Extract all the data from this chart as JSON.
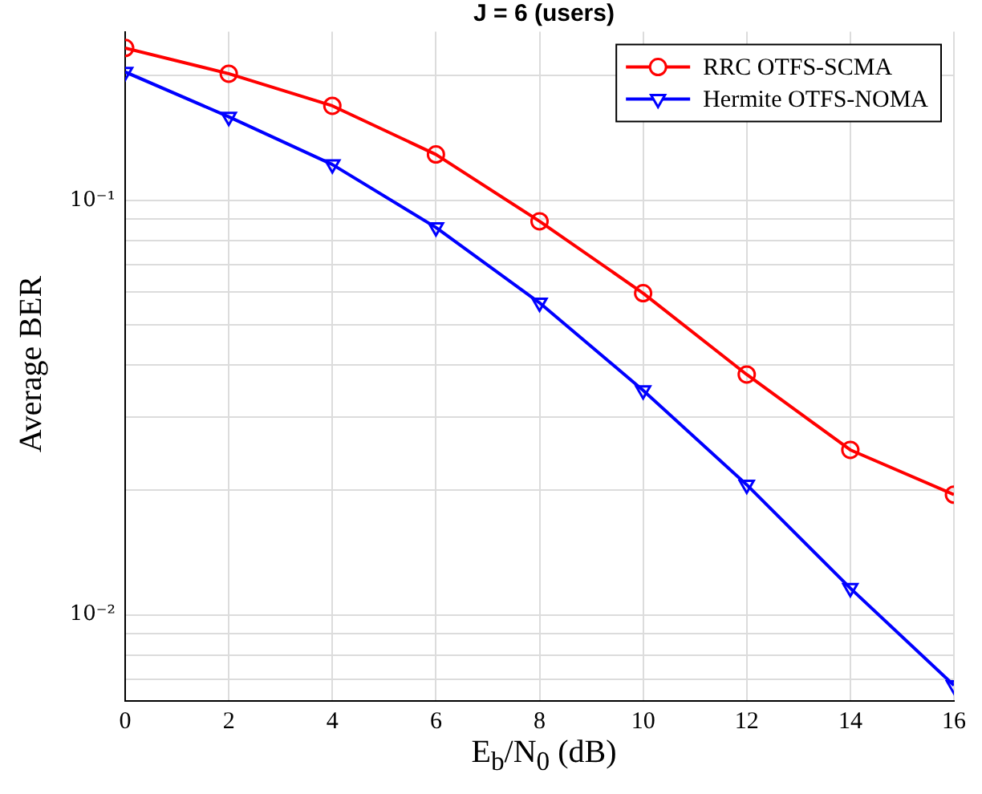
{
  "chart_data": {
    "type": "line",
    "title": "J = 6 (users)",
    "xlabel": "E$_{b}$/N$_{0}$ (dB)",
    "ylabel": "Average BER",
    "x": [
      0,
      2,
      4,
      6,
      8,
      10,
      12,
      14,
      16
    ],
    "series": [
      {
        "name": "RRC OTFS-SCMA",
        "color": "#ff0000",
        "marker": "circle",
        "values": [
          0.233,
          0.202,
          0.169,
          0.129,
          0.089,
          0.0597,
          0.038,
          0.025,
          0.0195
        ]
      },
      {
        "name": "Hermite OTFS-NOMA",
        "color": "#0000ff",
        "marker": "triangle",
        "values": [
          0.204,
          0.159,
          0.122,
          0.086,
          0.0566,
          0.0348,
          0.0206,
          0.0116,
          0.00676
        ]
      }
    ],
    "log": "y",
    "xlim": [
      0,
      16
    ],
    "xticks": [
      0,
      2,
      4,
      6,
      8,
      10,
      12,
      14,
      16
    ],
    "ylim": [
      0.0062,
      0.255
    ],
    "yticks": [
      {
        "value": 0.007,
        "label": null
      },
      {
        "value": 0.008,
        "label": null
      },
      {
        "value": 0.009,
        "label": null
      },
      {
        "value": 0.01,
        "label": "10⁻²"
      },
      {
        "value": 0.02,
        "label": null
      },
      {
        "value": 0.03,
        "label": null
      },
      {
        "value": 0.04,
        "label": null
      },
      {
        "value": 0.05,
        "label": null
      },
      {
        "value": 0.06,
        "label": null
      },
      {
        "value": 0.07,
        "label": null
      },
      {
        "value": 0.08,
        "label": null
      },
      {
        "value": 0.09,
        "label": null
      },
      {
        "value": 0.1,
        "label": "10⁻¹"
      },
      {
        "value": 0.2,
        "label": null
      }
    ],
    "grid": true,
    "legend": "top right",
    "line_style": "solid"
  }
}
